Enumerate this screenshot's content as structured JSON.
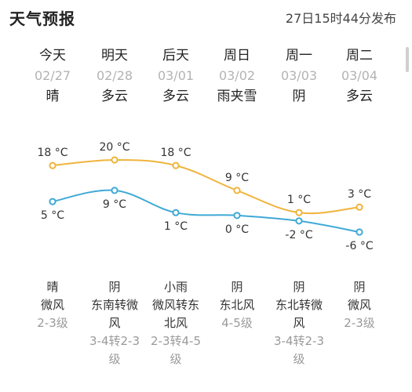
{
  "header": {
    "title": "天气预报",
    "publish_time": "27日15时44分发布"
  },
  "days": [
    {
      "name": "今天",
      "date": "02/27",
      "condition": "晴",
      "wind": [
        "晴",
        "微风"
      ],
      "level": [
        "2-3级"
      ]
    },
    {
      "name": "明天",
      "date": "02/28",
      "condition": "多云",
      "wind": [
        "阴",
        "东南转微",
        "风"
      ],
      "level": [
        "3-4转2-3",
        "级"
      ]
    },
    {
      "name": "后天",
      "date": "03/01",
      "condition": "多云",
      "wind": [
        "小雨",
        "微风转东",
        "北风"
      ],
      "level": [
        "2-3转4-5",
        "级"
      ]
    },
    {
      "name": "周日",
      "date": "03/02",
      "condition": "雨夹雪",
      "wind": [
        "阴",
        "东北风"
      ],
      "level": [
        "4-5级"
      ]
    },
    {
      "name": "周一",
      "date": "03/03",
      "condition": "阴",
      "wind": [
        "阴",
        "东北转微",
        "风"
      ],
      "level": [
        "3-4转2-3",
        "级"
      ]
    },
    {
      "name": "周二",
      "date": "03/04",
      "condition": "多云",
      "wind": [
        "阴",
        "微风"
      ],
      "level": [
        "2-3级"
      ]
    }
  ],
  "chart_data": {
    "type": "line",
    "x": [
      "02/27",
      "02/28",
      "03/01",
      "03/02",
      "03/03",
      "03/04"
    ],
    "series": [
      {
        "values": [
          18,
          20,
          18,
          9,
          1,
          3
        ],
        "color": "#f0b43c",
        "labels": [
          "18 °C",
          "20 °C",
          "18 °C",
          "9 °C",
          "1 °C",
          "3 °C"
        ]
      },
      {
        "values": [
          5,
          9,
          1,
          0,
          -2,
          -6
        ],
        "color": "#3fa9d6",
        "labels": [
          "5 °C",
          "9 °C",
          "1 °C",
          "0 °C",
          "-2 °C",
          "-6 °C"
        ]
      }
    ],
    "grid": false
  }
}
